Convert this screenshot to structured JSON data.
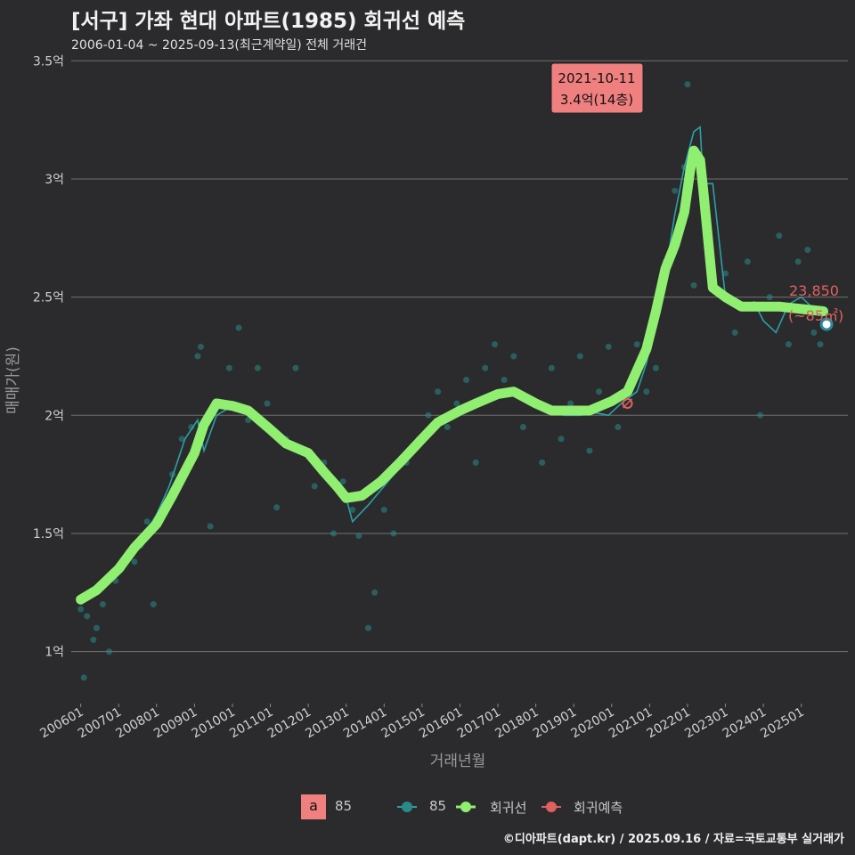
{
  "header": {
    "title": "[서구] 가좌 현대 아파트(1985) 회귀선 예측",
    "subtitle": "2006-01-04 ~ 2025-09-13(최근계약일) 전체 거래건"
  },
  "caption": "©디아파트(dapt.kr) / 2025.09.16 / 자료=국토교통부 실거래가",
  "colors": {
    "background": "#2b2b2d",
    "scatter": "#2a8a8a",
    "thin_line": "#2aa0a8",
    "regression": "#90ee70",
    "prediction": "#e06060",
    "callout_bg": "#f08080",
    "grid": "#707070"
  },
  "callout": {
    "date": "2021-10-11",
    "text": "3.4억(14층)"
  },
  "prediction_label": {
    "price": "23,850",
    "area": "(~85㎡)"
  },
  "legend": {
    "box_letter": "a",
    "box_label": "85",
    "items": [
      {
        "label": "85",
        "icon": "teal-dot-line-icon"
      },
      {
        "label": "회귀선",
        "icon": "green-dot-line-icon"
      },
      {
        "label": "회귀예측",
        "icon": "red-dot-line-icon"
      }
    ]
  },
  "chart_data": {
    "type": "line",
    "xlabel": "거래년월",
    "ylabel": "매매가(원)",
    "x_ticks": [
      "200601",
      "200701",
      "200801",
      "200901",
      "201001",
      "201101",
      "201201",
      "201301",
      "201401",
      "201501",
      "201601",
      "201701",
      "201801",
      "201901",
      "202001",
      "202101",
      "202201",
      "202301",
      "202401",
      "202501"
    ],
    "y_ticks": [
      {
        "value": 1.0,
        "label": "1억"
      },
      {
        "value": 1.5,
        "label": "1.5억"
      },
      {
        "value": 2.0,
        "label": "2억"
      },
      {
        "value": 2.5,
        "label": "2.5억"
      },
      {
        "value": 3.0,
        "label": "3억"
      },
      {
        "value": 3.5,
        "label": "3.5억"
      }
    ],
    "ylim": [
      0.78,
      3.55
    ],
    "xlim": [
      "2005-10",
      "2026-06"
    ],
    "series": [
      {
        "name": "85",
        "kind": "monthly-average",
        "points": [
          [
            "2006-01",
            1.2
          ],
          [
            "2006-06",
            1.27
          ],
          [
            "2006-10",
            1.3
          ],
          [
            "2007-01",
            1.36
          ],
          [
            "2007-04",
            1.4
          ],
          [
            "2007-08",
            1.47
          ],
          [
            "2008-01",
            1.58
          ],
          [
            "2008-05",
            1.7
          ],
          [
            "2008-10",
            1.9
          ],
          [
            "2009-02",
            1.98
          ],
          [
            "2009-04",
            1.85
          ],
          [
            "2009-08",
            2.0
          ],
          [
            "2010-01",
            2.04
          ],
          [
            "2010-06",
            2.02
          ],
          [
            "2010-10",
            1.96
          ],
          [
            "2011-03",
            1.9
          ],
          [
            "2011-08",
            1.85
          ],
          [
            "2012-01",
            1.83
          ],
          [
            "2012-06",
            1.78
          ],
          [
            "2012-10",
            1.72
          ],
          [
            "2013-01",
            1.65
          ],
          [
            "2013-03",
            1.55
          ],
          [
            "2013-08",
            1.62
          ],
          [
            "2014-01",
            1.7
          ],
          [
            "2014-06",
            1.78
          ],
          [
            "2014-10",
            1.85
          ],
          [
            "2015-03",
            1.92
          ],
          [
            "2015-08",
            1.98
          ],
          [
            "2016-01",
            2.02
          ],
          [
            "2016-06",
            2.05
          ],
          [
            "2016-10",
            2.08
          ],
          [
            "2017-03",
            2.11
          ],
          [
            "2017-08",
            2.1
          ],
          [
            "2018-01",
            2.05
          ],
          [
            "2018-06",
            2.02
          ],
          [
            "2018-10",
            2.0
          ],
          [
            "2019-03",
            2.0
          ],
          [
            "2019-08",
            2.01
          ],
          [
            "2019-12",
            2.0
          ],
          [
            "2020-04",
            2.05
          ],
          [
            "2020-09",
            2.1
          ],
          [
            "2020-12",
            2.22
          ],
          [
            "2021-03",
            2.4
          ],
          [
            "2021-06",
            2.6
          ],
          [
            "2021-09",
            2.85
          ],
          [
            "2021-12",
            3.05
          ],
          [
            "2022-03",
            3.2
          ],
          [
            "2022-05",
            3.22
          ],
          [
            "2022-06",
            2.98
          ],
          [
            "2022-09",
            2.98
          ],
          [
            "2023-01",
            2.5
          ],
          [
            "2023-06",
            2.45
          ],
          [
            "2023-10",
            2.48
          ],
          [
            "2024-01",
            2.4
          ],
          [
            "2024-05",
            2.35
          ],
          [
            "2024-09",
            2.47
          ],
          [
            "2025-01",
            2.5
          ],
          [
            "2025-05",
            2.45
          ],
          [
            "2025-08",
            2.42
          ]
        ]
      },
      {
        "name": "회귀선",
        "kind": "regression",
        "points": [
          [
            "2006-01",
            1.22
          ],
          [
            "2006-06",
            1.26
          ],
          [
            "2007-01",
            1.35
          ],
          [
            "2007-06",
            1.44
          ],
          [
            "2008-01",
            1.54
          ],
          [
            "2008-06",
            1.66
          ],
          [
            "2009-01",
            1.84
          ],
          [
            "2009-04",
            1.96
          ],
          [
            "2009-08",
            2.05
          ],
          [
            "2010-01",
            2.04
          ],
          [
            "2010-06",
            2.02
          ],
          [
            "2011-01",
            1.94
          ],
          [
            "2011-06",
            1.88
          ],
          [
            "2012-01",
            1.84
          ],
          [
            "2012-06",
            1.76
          ],
          [
            "2012-10",
            1.7
          ],
          [
            "2013-01",
            1.65
          ],
          [
            "2013-06",
            1.66
          ],
          [
            "2013-12",
            1.72
          ],
          [
            "2014-06",
            1.8
          ],
          [
            "2015-01",
            1.9
          ],
          [
            "2015-06",
            1.97
          ],
          [
            "2016-01",
            2.02
          ],
          [
            "2016-06",
            2.05
          ],
          [
            "2017-01",
            2.09
          ],
          [
            "2017-06",
            2.1
          ],
          [
            "2018-01",
            2.05
          ],
          [
            "2018-06",
            2.02
          ],
          [
            "2019-01",
            2.02
          ],
          [
            "2019-06",
            2.02
          ],
          [
            "2020-01",
            2.06
          ],
          [
            "2020-06",
            2.1
          ],
          [
            "2020-12",
            2.28
          ],
          [
            "2021-03",
            2.44
          ],
          [
            "2021-06",
            2.62
          ],
          [
            "2021-09",
            2.72
          ],
          [
            "2021-12",
            2.86
          ],
          [
            "2022-02",
            3.05
          ],
          [
            "2022-03",
            3.12
          ],
          [
            "2022-05",
            3.08
          ],
          [
            "2022-06",
            2.95
          ],
          [
            "2022-09",
            2.54
          ],
          [
            "2023-01",
            2.5
          ],
          [
            "2023-06",
            2.46
          ],
          [
            "2023-12",
            2.46
          ],
          [
            "2024-06",
            2.46
          ],
          [
            "2025-01",
            2.45
          ],
          [
            "2025-08",
            2.44
          ]
        ]
      }
    ],
    "scatter": [
      [
        "2006-01",
        1.18
      ],
      [
        "2006-02",
        0.89
      ],
      [
        "2006-03",
        1.15
      ],
      [
        "2006-04",
        1.25
      ],
      [
        "2006-05",
        1.05
      ],
      [
        "2006-06",
        1.1
      ],
      [
        "2006-08",
        1.2
      ],
      [
        "2006-10",
        1.0
      ],
      [
        "2006-12",
        1.3
      ],
      [
        "2007-02",
        1.35
      ],
      [
        "2007-04",
        1.42
      ],
      [
        "2007-06",
        1.38
      ],
      [
        "2007-08",
        1.45
      ],
      [
        "2007-10",
        1.55
      ],
      [
        "2007-12",
        1.2
      ],
      [
        "2008-03",
        1.6
      ],
      [
        "2008-06",
        1.75
      ],
      [
        "2008-09",
        1.9
      ],
      [
        "2008-12",
        1.95
      ],
      [
        "2009-02",
        2.25
      ],
      [
        "2009-03",
        2.29
      ],
      [
        "2009-06",
        1.53
      ],
      [
        "2009-09",
        2.05
      ],
      [
        "2009-12",
        2.2
      ],
      [
        "2010-03",
        2.37
      ],
      [
        "2010-06",
        1.98
      ],
      [
        "2010-09",
        2.2
      ],
      [
        "2010-12",
        2.05
      ],
      [
        "2011-03",
        1.61
      ],
      [
        "2011-06",
        1.9
      ],
      [
        "2011-09",
        2.2
      ],
      [
        "2011-12",
        1.85
      ],
      [
        "2012-03",
        1.7
      ],
      [
        "2012-06",
        1.8
      ],
      [
        "2012-09",
        1.5
      ],
      [
        "2012-12",
        1.72
      ],
      [
        "2013-03",
        1.6
      ],
      [
        "2013-05",
        1.49
      ],
      [
        "2013-08",
        1.1
      ],
      [
        "2013-10",
        1.25
      ],
      [
        "2014-01",
        1.6
      ],
      [
        "2014-04",
        1.5
      ],
      [
        "2014-08",
        1.8
      ],
      [
        "2014-12",
        1.9
      ],
      [
        "2015-03",
        2.0
      ],
      [
        "2015-06",
        2.1
      ],
      [
        "2015-09",
        1.95
      ],
      [
        "2015-12",
        2.05
      ],
      [
        "2016-03",
        2.15
      ],
      [
        "2016-06",
        1.8
      ],
      [
        "2016-09",
        2.2
      ],
      [
        "2016-12",
        2.3
      ],
      [
        "2017-03",
        2.15
      ],
      [
        "2017-06",
        2.25
      ],
      [
        "2017-09",
        1.95
      ],
      [
        "2017-12",
        2.05
      ],
      [
        "2018-03",
        1.8
      ],
      [
        "2018-06",
        2.2
      ],
      [
        "2018-09",
        1.9
      ],
      [
        "2018-12",
        2.05
      ],
      [
        "2019-03",
        2.25
      ],
      [
        "2019-06",
        1.85
      ],
      [
        "2019-09",
        2.1
      ],
      [
        "2019-12",
        2.29
      ],
      [
        "2020-03",
        1.95
      ],
      [
        "2020-06",
        2.1
      ],
      [
        "2020-09",
        2.3
      ],
      [
        "2020-12",
        2.1
      ],
      [
        "2021-03",
        2.2
      ],
      [
        "2021-06",
        2.65
      ],
      [
        "2021-09",
        2.95
      ],
      [
        "2021-12",
        3.05
      ],
      [
        "2022-01",
        3.4
      ],
      [
        "2022-03",
        2.55
      ],
      [
        "2022-06",
        2.98
      ],
      [
        "2022-09",
        2.55
      ],
      [
        "2023-01",
        2.6
      ],
      [
        "2023-04",
        2.35
      ],
      [
        "2023-08",
        2.65
      ],
      [
        "2023-12",
        2.0
      ],
      [
        "2024-03",
        2.5
      ],
      [
        "2024-06",
        2.76
      ],
      [
        "2024-09",
        2.3
      ],
      [
        "2024-12",
        2.65
      ],
      [
        "2025-03",
        2.7
      ],
      [
        "2025-05",
        2.35
      ],
      [
        "2025-07",
        2.3
      ]
    ],
    "prediction": [
      {
        "date": "2020-06",
        "value": 2.05
      },
      {
        "date": "2025-09",
        "value": 2.385
      }
    ],
    "callout_point": {
      "date": "2021-10",
      "value": 3.4
    }
  }
}
